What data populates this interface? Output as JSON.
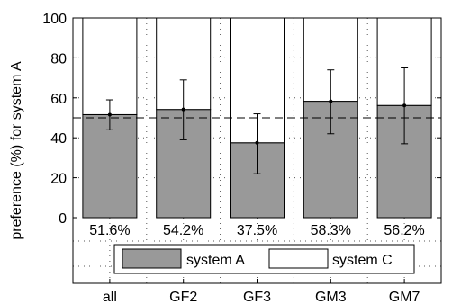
{
  "chart_data": {
    "type": "bar",
    "stacked": true,
    "categories": [
      "all",
      "GF2",
      "GF3",
      "GM3",
      "GM7"
    ],
    "series": [
      {
        "name": "system A",
        "values": [
          51.6,
          54.2,
          37.5,
          58.3,
          56.2
        ],
        "color": "#999999"
      },
      {
        "name": "system C",
        "values": [
          48.4,
          45.8,
          62.5,
          41.7,
          43.8
        ],
        "color": "#ffffff"
      }
    ],
    "error_bars": {
      "low": [
        44,
        39,
        22,
        42,
        37
      ],
      "high": [
        59,
        69,
        52,
        74,
        75
      ]
    },
    "data_labels": [
      "51.6%",
      "54.2%",
      "37.5%",
      "58.3%",
      "56.2%"
    ],
    "reference_line": 50,
    "ylabel": "preference (%) for system A",
    "ylim": [
      0,
      100
    ],
    "yticks": [
      0,
      20,
      40,
      60,
      80,
      100
    ],
    "grid": true,
    "legend": {
      "position": "bottom-center",
      "entries": [
        "system A",
        "system C"
      ]
    }
  }
}
